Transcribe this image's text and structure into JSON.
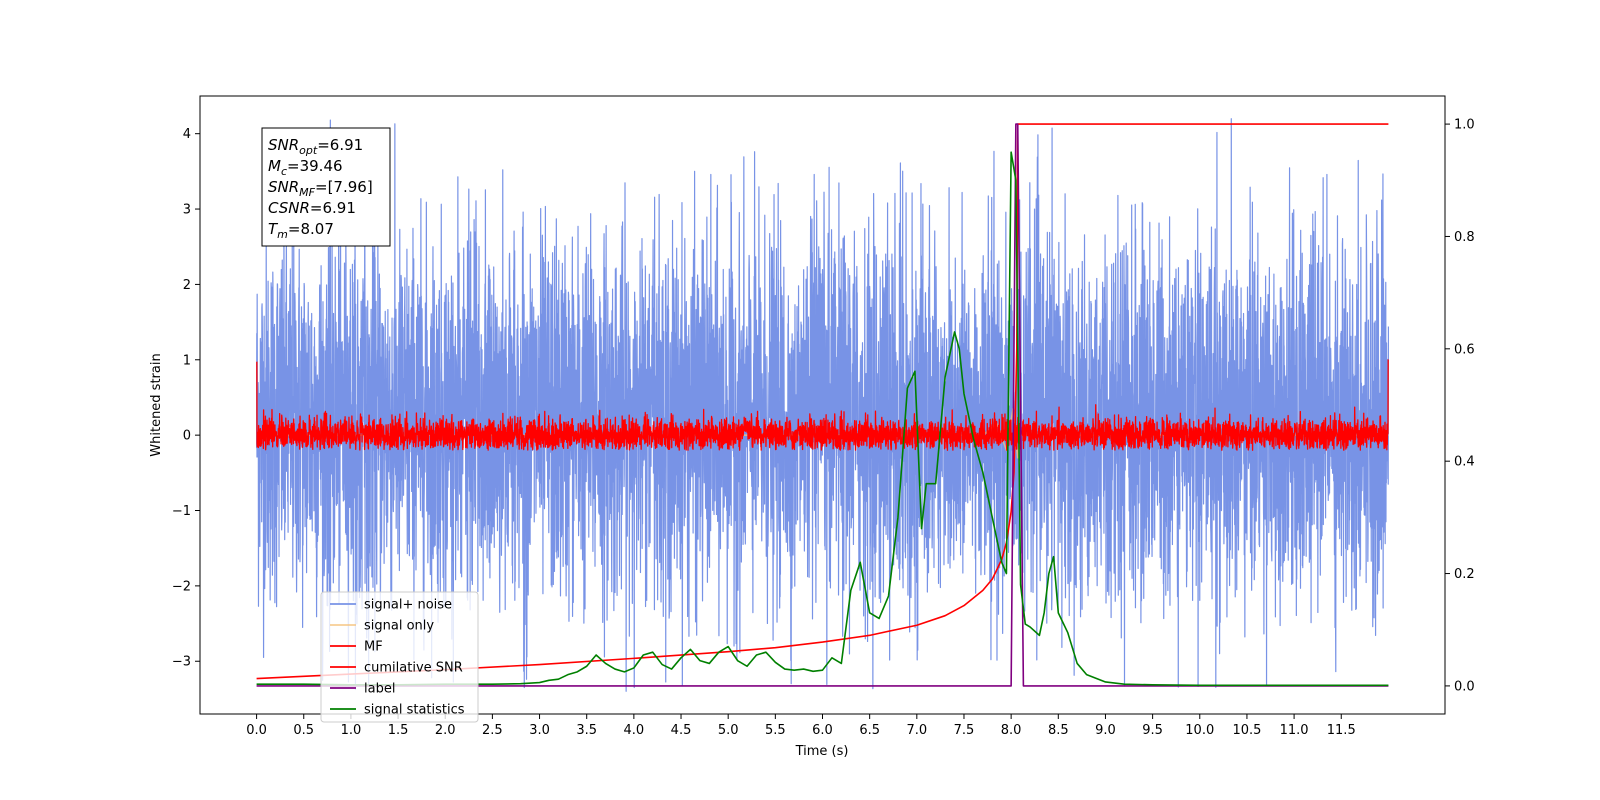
{
  "chart_data": {
    "type": "line",
    "title": "",
    "xlabel": "Time (s)",
    "ylabel": "Whitened strain",
    "y2label": "",
    "xlim": [
      -0.6,
      12.6
    ],
    "ylim": [
      -3.7,
      4.5
    ],
    "y2lim": [
      -0.05,
      1.05
    ],
    "x_ticks": [
      0.0,
      0.5,
      1.0,
      1.5,
      2.0,
      2.5,
      3.0,
      3.5,
      4.0,
      4.5,
      5.0,
      5.5,
      6.0,
      6.5,
      7.0,
      7.5,
      8.0,
      8.5,
      9.0,
      9.5,
      10.0,
      10.5,
      11.0,
      11.5
    ],
    "x_tick_labels": [
      "0.0",
      "0.5",
      "1.0",
      "1.5",
      "2.0",
      "2.5",
      "3.0",
      "3.5",
      "4.0",
      "4.5",
      "5.0",
      "5.5",
      "6.0",
      "6.5",
      "7.0",
      "7.5",
      "8.0",
      "8.5",
      "9.0",
      "9.5",
      "10.0",
      "10.5",
      "11.0",
      "11.5"
    ],
    "y_ticks": [
      -3,
      -2,
      -1,
      0,
      1,
      2,
      3,
      4
    ],
    "y_tick_labels": [
      "−3",
      "−2",
      "−1",
      "0",
      "1",
      "2",
      "3",
      "4"
    ],
    "y2_ticks": [
      0.0,
      0.2,
      0.4,
      0.6,
      0.8,
      1.0
    ],
    "y2_tick_labels": [
      "0.0",
      "0.2",
      "0.4",
      "0.6",
      "0.8",
      "1.0"
    ],
    "grid": false,
    "legend_position": "lower-left",
    "annotation": {
      "lines": [
        {
          "sym": "SNR",
          "sub": "opt",
          "text": "=6.91"
        },
        {
          "sym": "M",
          "sub": "c",
          "text": "=39.46"
        },
        {
          "sym": "SNR",
          "sub": "MF",
          "text": "=[7.96]"
        },
        {
          "sym": "CSNR",
          "sub": "",
          "text": "=6.91"
        },
        {
          "sym": "T",
          "sub": "m",
          "text": "=8.07"
        }
      ]
    },
    "series": [
      {
        "name": "signal+ noise",
        "axis": "left",
        "color": "#7893e6",
        "kind": "noise",
        "x_range": [
          0.0,
          12.0
        ],
        "typical_range": [
          -1.4,
          1.8
        ],
        "extreme_range": [
          -3.4,
          4.2
        ]
      },
      {
        "name": "signal only",
        "axis": "left",
        "color": "#f5c27a",
        "kind": "chirp",
        "x": [
          0.0,
          7.7,
          7.85,
          7.95,
          8.02,
          8.07,
          8.1,
          12.0
        ],
        "y": [
          0.0,
          0.0,
          0.15,
          -0.2,
          0.35,
          -0.3,
          0.0,
          0.0
        ]
      },
      {
        "name": "MF",
        "axis": "left",
        "color": "#ff0000",
        "kind": "noise",
        "x_range": [
          0.0,
          12.0
        ],
        "typical_range": [
          -0.15,
          0.15
        ],
        "extreme_range": [
          -0.2,
          0.42
        ],
        "edge_spikes": [
          [
            0.0,
            0.97
          ],
          [
            12.0,
            1.0
          ]
        ]
      },
      {
        "name": "cumilative SNR",
        "axis": "right",
        "color": "#ff0000",
        "kind": "line",
        "x": [
          0.0,
          1.0,
          2.0,
          3.0,
          4.0,
          5.0,
          5.5,
          6.0,
          6.5,
          7.0,
          7.3,
          7.5,
          7.7,
          7.8,
          7.9,
          7.95,
          8.0,
          8.03,
          8.06,
          8.07,
          12.0
        ],
        "y": [
          0.013,
          0.021,
          0.029,
          0.038,
          0.049,
          0.061,
          0.068,
          0.078,
          0.09,
          0.108,
          0.125,
          0.143,
          0.17,
          0.19,
          0.225,
          0.255,
          0.31,
          0.38,
          0.6,
          1.0,
          1.0
        ]
      },
      {
        "name": "label",
        "axis": "right",
        "color": "#800080",
        "kind": "line",
        "x": [
          0.0,
          8.0,
          8.05,
          8.07,
          8.13,
          12.0
        ],
        "y": [
          0.0,
          0.0,
          1.0,
          1.0,
          0.0,
          0.0
        ]
      },
      {
        "name": "signal statistics",
        "axis": "right",
        "color": "#008000",
        "kind": "line",
        "x": [
          0.0,
          0.5,
          1.0,
          1.5,
          2.0,
          2.5,
          2.8,
          3.0,
          3.1,
          3.2,
          3.3,
          3.4,
          3.5,
          3.6,
          3.7,
          3.8,
          3.9,
          4.0,
          4.1,
          4.2,
          4.3,
          4.4,
          4.5,
          4.6,
          4.7,
          4.8,
          4.9,
          5.0,
          5.1,
          5.2,
          5.3,
          5.4,
          5.5,
          5.6,
          5.7,
          5.8,
          5.9,
          6.0,
          6.1,
          6.2,
          6.3,
          6.4,
          6.5,
          6.6,
          6.7,
          6.8,
          6.9,
          6.98,
          7.05,
          7.1,
          7.2,
          7.3,
          7.4,
          7.45,
          7.5,
          7.6,
          7.7,
          7.8,
          7.9,
          7.95,
          8.0,
          8.05,
          8.1,
          8.15,
          8.2,
          8.3,
          8.35,
          8.4,
          8.45,
          8.5,
          8.6,
          8.7,
          8.8,
          9.0,
          9.2,
          9.5,
          10.0,
          11.0,
          12.0
        ],
        "y": [
          0.003,
          0.003,
          0.002,
          0.002,
          0.003,
          0.003,
          0.004,
          0.006,
          0.01,
          0.012,
          0.02,
          0.025,
          0.035,
          0.055,
          0.04,
          0.03,
          0.025,
          0.032,
          0.055,
          0.06,
          0.038,
          0.03,
          0.05,
          0.065,
          0.045,
          0.04,
          0.06,
          0.07,
          0.045,
          0.035,
          0.055,
          0.06,
          0.042,
          0.03,
          0.028,
          0.03,
          0.026,
          0.028,
          0.05,
          0.04,
          0.17,
          0.22,
          0.13,
          0.12,
          0.16,
          0.3,
          0.53,
          0.56,
          0.28,
          0.36,
          0.36,
          0.55,
          0.63,
          0.6,
          0.52,
          0.44,
          0.38,
          0.3,
          0.22,
          0.2,
          0.95,
          0.9,
          0.18,
          0.11,
          0.105,
          0.09,
          0.13,
          0.2,
          0.23,
          0.13,
          0.095,
          0.04,
          0.02,
          0.007,
          0.003,
          0.002,
          0.001,
          0.001,
          0.001
        ]
      }
    ]
  }
}
